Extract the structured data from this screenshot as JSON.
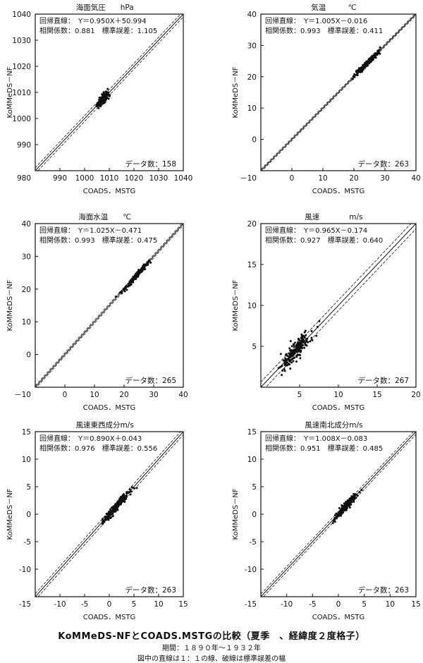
{
  "figure": {
    "title": "KoMMeDS-NFとCOADS.MSTGの比較（夏季　、経緯度２度格子）",
    "period": "期間：１８９０年～１９３２年",
    "note": "図中の直線は１：１の線、破線は標準誤差の幅"
  },
  "chart_data": [
    {
      "type": "scatter",
      "title": "海面気圧　　hPa",
      "xlabel": "COADS．MSTG",
      "ylabel": "KoMMeDS－NF",
      "xlim": [
        980,
        1040
      ],
      "ylim": [
        980,
        1040
      ],
      "xticks": [
        990,
        1000,
        1010,
        1020,
        1030,
        1040
      ],
      "yticks": [
        990,
        1000,
        1010,
        1020,
        1030,
        1040
      ],
      "xtick_labels": [
        "990",
        "1000",
        "1010",
        "1020",
        "1030",
        "1040"
      ],
      "ytick_labels": [
        "990",
        "1000",
        "1010",
        "1020",
        "1030",
        "1040"
      ],
      "corner_label": "980",
      "regression_text": "回帰直線：　Y＝0.950X＋50.994",
      "stats_text": "相関係数：0.881　標準誤差：1.105",
      "count_text": "データ数：158",
      "std_error": 1.105,
      "cluster": {
        "x_center": 1007.5,
        "x_spread": 1.8,
        "y_spread": 1.3,
        "x_min": 1003.5,
        "x_max": 1011,
        "n": 158
      }
    },
    {
      "type": "scatter",
      "title": "気温　　　℃",
      "xlabel": "COADS．MSTG",
      "ylabel": "KoMMeDS－NF",
      "xlim": [
        -10,
        40
      ],
      "ylim": [
        -10,
        40
      ],
      "xticks": [
        0,
        10,
        20,
        30,
        40
      ],
      "yticks": [
        0,
        10,
        20,
        30,
        40
      ],
      "xtick_labels": [
        "0",
        "10",
        "20",
        "30",
        "40"
      ],
      "ytick_labels": [
        "0",
        "10",
        "20",
        "30",
        "40"
      ],
      "corner_label": "－10",
      "regression_text": "回帰直線：　Y＝1.005X－0.016",
      "stats_text": "相関係数：0.993　標準誤差：0.411",
      "count_text": "データ数：263",
      "std_error": 0.411,
      "cluster": {
        "x_center": 24.5,
        "x_spread": 3.0,
        "y_spread": 0.6,
        "x_min": 13,
        "x_max": 28.5,
        "n": 263
      }
    },
    {
      "type": "scatter",
      "title": "海面水温　　℃",
      "xlabel": "COADS．MSTG",
      "ylabel": "KoMMeDS－NF",
      "xlim": [
        -10,
        40
      ],
      "ylim": [
        -10,
        40
      ],
      "xticks": [
        0,
        10,
        20,
        30,
        40
      ],
      "yticks": [
        0,
        10,
        20,
        30,
        40
      ],
      "xtick_labels": [
        "0",
        "10",
        "20",
        "30",
        "40"
      ],
      "ytick_labels": [
        "0",
        "10",
        "20",
        "30",
        "40"
      ],
      "corner_label": "－10",
      "regression_text": "回帰直線：　Y＝1.025X－0.471",
      "stats_text": "相関係数：0.993　標準誤差：0.475",
      "count_text": "データ数：265",
      "std_error": 0.475,
      "cluster": {
        "x_center": 24.0,
        "x_spread": 3.0,
        "y_spread": 0.6,
        "x_min": 12,
        "x_max": 29,
        "n": 265
      }
    },
    {
      "type": "scatter",
      "title": "風速　　　　m/s",
      "xlabel": "COADS．MSTG",
      "ylabel": "KoMMeDS－NF",
      "xlim": [
        0,
        20
      ],
      "ylim": [
        0,
        20
      ],
      "xticks": [
        5,
        10,
        15,
        20
      ],
      "yticks": [
        5,
        10,
        15,
        20
      ],
      "xtick_labels": [
        "5",
        "10",
        "15",
        "20"
      ],
      "ytick_labels": [
        "5",
        "10",
        "15",
        "20"
      ],
      "corner_label": "",
      "regression_text": "回帰直線：　Y＝0.965X－0.174",
      "stats_text": "相関係数：0.927　標準誤差：0.640",
      "count_text": "データ数：267",
      "std_error": 0.64,
      "cluster": {
        "x_center": 4.5,
        "x_spread": 1.5,
        "y_spread": 0.8,
        "x_min": 2,
        "x_max": 9,
        "n": 267
      }
    },
    {
      "type": "scatter",
      "title": "風速東西成分m/s",
      "xlabel": "COADS．MSTG",
      "ylabel": "KoMMeDS－NF",
      "xlim": [
        -15,
        15
      ],
      "ylim": [
        -15,
        15
      ],
      "xticks": [
        -10,
        -5,
        0,
        5,
        10,
        15
      ],
      "yticks": [
        -10,
        -5,
        0,
        5,
        10,
        15
      ],
      "xtick_labels": [
        "-10",
        "-5",
        "0",
        "5",
        "10",
        "15"
      ],
      "ytick_labels": [
        "-10",
        "-5",
        "0",
        "5",
        "10",
        "15"
      ],
      "corner_label": "-15",
      "regression_text": "回帰直線：　Y＝0.890X＋0.043",
      "stats_text": "相関係数：0.976　標準誤差：0.556",
      "count_text": "データ数：263",
      "std_error": 0.556,
      "cluster": {
        "x_center": 1.5,
        "x_spread": 2.0,
        "y_spread": 0.6,
        "x_min": -1.5,
        "x_max": 8,
        "n": 263
      }
    },
    {
      "type": "scatter",
      "title": "風速南北成分m/s",
      "xlabel": "COADS．MSTG",
      "ylabel": "KoMMeDS－NF",
      "xlim": [
        -15,
        15
      ],
      "ylim": [
        -15,
        15
      ],
      "xticks": [
        -10,
        -5,
        0,
        5,
        10,
        15
      ],
      "yticks": [
        -10,
        -5,
        0,
        5,
        10,
        15
      ],
      "xtick_labels": [
        "-10",
        "-5",
        "0",
        "5",
        "10",
        "15"
      ],
      "ytick_labels": [
        "-10",
        "-5",
        "0",
        "5",
        "10",
        "15"
      ],
      "corner_label": "-15",
      "regression_text": "回帰直線：　Y＝1.008X－0.083",
      "stats_text": "相関係数：0.951　標準誤差：0.485",
      "count_text": "データ数：263",
      "std_error": 0.485,
      "cluster": {
        "x_center": 1.5,
        "x_spread": 1.4,
        "y_spread": 0.5,
        "x_min": -1.5,
        "x_max": 4.5,
        "n": 263
      }
    }
  ]
}
